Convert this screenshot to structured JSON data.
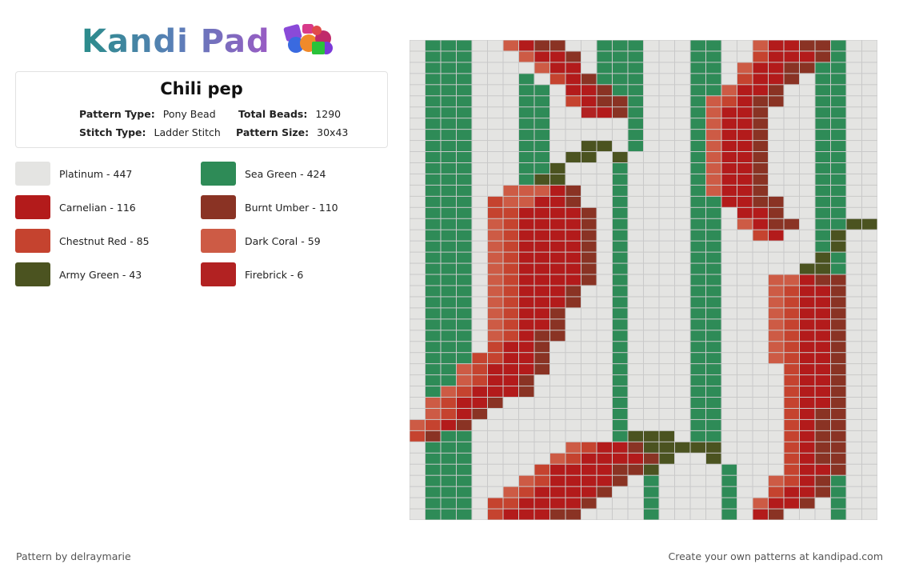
{
  "logo": {
    "text": "Kandi Pad"
  },
  "pattern": {
    "title": "Chili pep",
    "type_label": "Pattern Type:",
    "type_value": "Pony Bead",
    "beads_label": "Total Beads:",
    "beads_value": "1290",
    "stitch_label": "Stitch Type:",
    "stitch_value": "Ladder Stitch",
    "size_label": "Pattern Size:",
    "size_value": "30x43"
  },
  "legend": [
    {
      "label": "Platinum - 447",
      "color": "#e4e4e2"
    },
    {
      "label": "Sea Green - 424",
      "color": "#2e8b57"
    },
    {
      "label": "Carnelian - 116",
      "color": "#b31b1b"
    },
    {
      "label": "Burnt Umber - 110",
      "color": "#8a3324"
    },
    {
      "label": "Chestnut Red - 85",
      "color": "#c5432f"
    },
    {
      "label": "Dark Coral - 59",
      "color": "#cd5b45"
    },
    {
      "label": "Army Green - 43",
      "color": "#4b5320"
    },
    {
      "label": "Firebrick - 6",
      "color": "#b22222"
    }
  ],
  "grid": {
    "columns": 30,
    "rows": 43,
    "palette": {
      "W": "#e4e4e2",
      "G": "#2e8b57",
      "R": "#b31b1b",
      "B": "#8a3324",
      "C": "#c5432f",
      "D": "#cd5b45",
      "A": "#4b5320",
      "F": "#b22222"
    },
    "cells": [
      "WGGGWWDRBBWWGGGWWWGGWWDRRBBGWW",
      "WGGGWWWDRRBWGGGWWWGGWWCRRRBGWW",
      "WGGGWWWWDRRWGGGWWWGGWDRRBBGGWW",
      "WGGGWWWGWCRBGGGWWWGGWCRRBWGGWW",
      "WGGGWWWGGWRRBGGWWWGGDRRBWWGGWW",
      "WGGGWWWGGWCRBBGWWWGDCRBBWWGGWW",
      "WGGGWWWGGWWFRBGWWWGDRRBWWWGGWW",
      "WGGGWWWGGWWWWWGWWWGDRRBWWWGGWW",
      "WGGGWWWGGWWWWWGWWWGDRRBWWWGGWW",
      "WGGGWWWGGWWAAWGWWWGDRRBWWWGGWW",
      "WGGGWWWGGWAAWAWWWWGDRRBWWWGGWW",
      "WGGGWWWGGAWWWGWWWWGDRRBWWWGGWW",
      "WGGGWWWGAAWWWGWWWWGDRRBWWWGGWW",
      "WGGGWWDDDRBWWGWWWWGDRRBWWWGGWW",
      "WGGGWCDDRRBWWGWWWWGGRRBBWWGGWW",
      "WGGGWCCRRRRBWGWWWWGGWRRBWWGGWW",
      "WGGGWDCRRRRBWGWWWWGGWDRBBWGGAA",
      "WGGGWDCRRRRBWGWWWWGGWWCRWWGAWW",
      "WGGGWDCRRRRBWGWWWWGGWWWWWWGAWW",
      "WGGGWDCRRRRBWGWWWWGGWWWWWWAGWW",
      "WGGGWDCRRRRBWGWWWWGGWWWWWAAGWW",
      "WGGGWDCRRRRBWGWWWWGGWWWDDRBBWW",
      "WGGGWDCRRRBWWGWWWWGGWWWDCRRBWW",
      "WGGGWDCRRRBWWGWWWWGGWWWDCRRBWW",
      "WGGGWDCRRBWWWGWWWWGGWWWDCRRBWW",
      "WGGGWDCRRBWWWGWWWWGGWWWDCRRBWW",
      "WGGGWDCRBBWWWGWWWWGGWWWDCRRBWW",
      "WGGGWCRRBWWWWGWWWWGGWWWDCRRBWW",
      "WGGGCCRRBWWWWGWWWWGGWWWDCRRBWW",
      "WGGDCRRRBWWWWGWWWWGGWWWWCRRBWW",
      "WGGDCRRBWWWWWGWWWWGGWWWWCRRBWW",
      "WGDCRRRBWWWWWGWWWWGGWWWWCRRBWW",
      "WDCRRBWWWWWWWGWWWWGGWWWWCRRBWW",
      "WDCRBWWWWWWWWGWWWWGGWWWWCRBBWW",
      "DCRBWWWWWWWWWGWWWWGGWWWWCRBBWW",
      "CBGGWWWWWWWWWGAAAWGGWWWWCRBBWW",
      "WGGGWWWWWWDCRRBAAAAAWWWWCRBBWW",
      "WGGGWWWWWDCRRRRBAWWAWWWWCRBBWW",
      "WGGGWWWWCRRRRBBAWWWWGWWWCRRBWW",
      "WGGGWWWDCRRRRBWGWWWWGWWDCRBGWW",
      "WGGGWWDCRRRRBWWGWWWWGWWCRRBGWW",
      "WGGGWCCRRRRBWWWGWWWWGWDRRBWGWW",
      "WGGGWCRRRBBWWWWGWWWWGWRBWWWGWW"
    ]
  },
  "footer": {
    "credit": "Pattern by delraymarie",
    "cta": "Create your own patterns at kandipad.com"
  }
}
